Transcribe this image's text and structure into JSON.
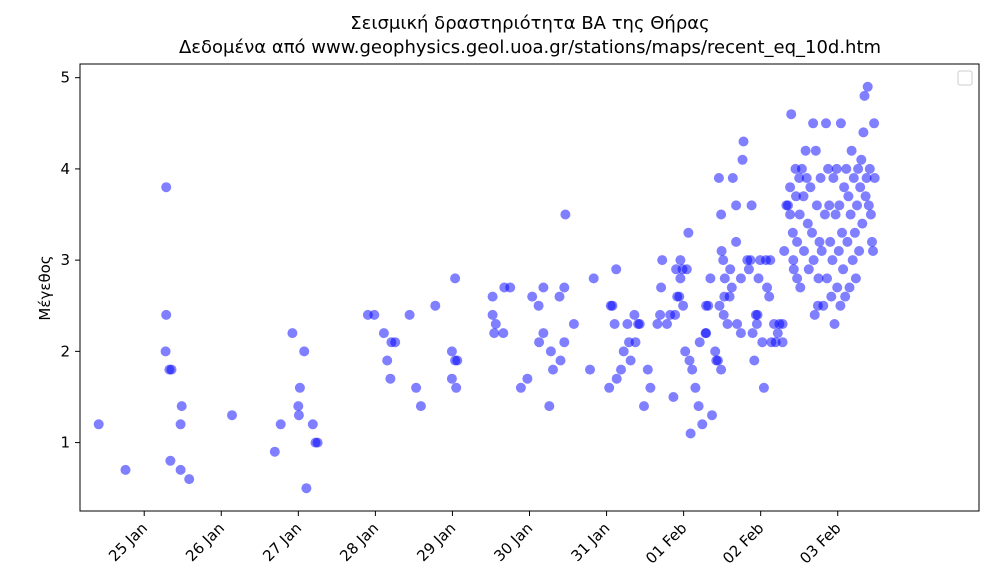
{
  "chart_data": {
    "type": "scatter",
    "title": "Σεισμική δραστηριότητα ΒΑ της Θήρας",
    "subtitle": "Δεδομένα από www.geophysics.geol.uoa.gr/stations/maps/recent_eq_10d.htm",
    "xlabel": "",
    "ylabel": "Μέγεθος",
    "x_unit": "date (days, 2025)",
    "xlim": [
      "2025-01-24T04:00",
      "2025-02-04T20:00"
    ],
    "ylim": [
      0.25,
      5.15
    ],
    "xticks": [
      {
        "label": "25 Jan",
        "date": "2025-01-25"
      },
      {
        "label": "26 Jan",
        "date": "2025-01-26"
      },
      {
        "label": "27 Jan",
        "date": "2025-01-27"
      },
      {
        "label": "28 Jan",
        "date": "2025-01-28"
      },
      {
        "label": "29 Jan",
        "date": "2025-01-29"
      },
      {
        "label": "30 Jan",
        "date": "2025-01-30"
      },
      {
        "label": "31 Jan",
        "date": "2025-01-31"
      },
      {
        "label": "01 Feb",
        "date": "2025-02-01"
      },
      {
        "label": "02 Feb",
        "date": "2025-02-02"
      },
      {
        "label": "03 Feb",
        "date": "2025-02-03"
      }
    ],
    "yticks": [
      1,
      2,
      3,
      4,
      5
    ],
    "grid": false,
    "legend": {
      "placement": "upper right",
      "entries": []
    },
    "marker_color": "#0000ff",
    "marker_alpha": 0.5,
    "points": [
      [
        "2025-01-24T09:50",
        1.2
      ],
      [
        "2025-01-24T18:10",
        0.7
      ],
      [
        "2025-01-25T06:50",
        3.8
      ],
      [
        "2025-01-25T06:50",
        2.4
      ],
      [
        "2025-01-25T06:40",
        2.0
      ],
      [
        "2025-01-25T07:50",
        1.8
      ],
      [
        "2025-01-25T08:30",
        1.8
      ],
      [
        "2025-01-25T08:10",
        0.8
      ],
      [
        "2025-01-25T11:40",
        1.4
      ],
      [
        "2025-01-25T11:20",
        1.2
      ],
      [
        "2025-01-25T11:20",
        0.7
      ],
      [
        "2025-01-25T14:00",
        0.6
      ],
      [
        "2025-01-26T03:20",
        1.3
      ],
      [
        "2025-01-26T16:40",
        0.9
      ],
      [
        "2025-01-26T18:30",
        1.2
      ],
      [
        "2025-01-26T22:10",
        2.2
      ],
      [
        "2025-01-27T00:00",
        1.4
      ],
      [
        "2025-01-27T00:10",
        1.3
      ],
      [
        "2025-01-27T00:30",
        1.6
      ],
      [
        "2025-01-27T01:50",
        2.0
      ],
      [
        "2025-01-27T02:30",
        0.5
      ],
      [
        "2025-01-27T04:30",
        1.2
      ],
      [
        "2025-01-27T05:20",
        1.0
      ],
      [
        "2025-01-27T06:00",
        1.0
      ],
      [
        "2025-01-27T21:40",
        2.4
      ],
      [
        "2025-01-27T23:40",
        2.4
      ],
      [
        "2025-01-28T02:40",
        2.2
      ],
      [
        "2025-01-28T03:40",
        1.9
      ],
      [
        "2025-01-28T05:00",
        2.1
      ],
      [
        "2025-01-28T04:40",
        1.7
      ],
      [
        "2025-01-28T06:10",
        2.1
      ],
      [
        "2025-01-28T10:40",
        2.4
      ],
      [
        "2025-01-28T12:40",
        1.6
      ],
      [
        "2025-01-28T14:10",
        1.4
      ],
      [
        "2025-01-28T18:40",
        2.5
      ],
      [
        "2025-01-28T23:50",
        2.0
      ],
      [
        "2025-01-28T23:50",
        1.7
      ],
      [
        "2025-01-29T00:50",
        1.9
      ],
      [
        "2025-01-29T01:10",
        1.6
      ],
      [
        "2025-01-29T01:30",
        1.9
      ],
      [
        "2025-01-29T00:50",
        2.8
      ],
      [
        "2025-01-29T12:30",
        2.6
      ],
      [
        "2025-01-29T12:30",
        2.4
      ],
      [
        "2025-01-29T13:30",
        2.3
      ],
      [
        "2025-01-29T13:00",
        2.2
      ],
      [
        "2025-01-29T15:50",
        2.2
      ],
      [
        "2025-01-29T16:10",
        2.7
      ],
      [
        "2025-01-29T18:00",
        2.7
      ],
      [
        "2025-01-29T21:20",
        1.6
      ],
      [
        "2025-01-29T23:20",
        1.7
      ],
      [
        "2025-01-30T00:50",
        2.6
      ],
      [
        "2025-01-30T02:50",
        2.5
      ],
      [
        "2025-01-30T03:00",
        2.1
      ],
      [
        "2025-01-30T04:20",
        2.2
      ],
      [
        "2025-01-30T04:20",
        2.7
      ],
      [
        "2025-01-30T06:40",
        2.0
      ],
      [
        "2025-01-30T06:10",
        1.4
      ],
      [
        "2025-01-30T07:20",
        1.8
      ],
      [
        "2025-01-30T09:20",
        2.6
      ],
      [
        "2025-01-30T10:50",
        2.7
      ],
      [
        "2025-01-30T09:40",
        1.9
      ],
      [
        "2025-01-30T10:50",
        2.1
      ],
      [
        "2025-01-30T11:10",
        3.5
      ],
      [
        "2025-01-30T13:50",
        2.3
      ],
      [
        "2025-01-30T18:50",
        1.8
      ],
      [
        "2025-01-30T20:00",
        2.8
      ],
      [
        "2025-01-31T00:50",
        1.6
      ],
      [
        "2025-01-31T01:20",
        2.5
      ],
      [
        "2025-01-31T01:50",
        2.5
      ],
      [
        "2025-01-31T02:30",
        2.3
      ],
      [
        "2025-01-31T03:00",
        2.9
      ],
      [
        "2025-01-31T03:10",
        1.7
      ],
      [
        "2025-01-31T04:30",
        1.8
      ],
      [
        "2025-01-31T05:20",
        2.0
      ],
      [
        "2025-01-31T06:30",
        2.3
      ],
      [
        "2025-01-31T07:00",
        2.1
      ],
      [
        "2025-01-31T07:30",
        1.9
      ],
      [
        "2025-01-31T08:40",
        2.4
      ],
      [
        "2025-01-31T09:00",
        2.1
      ],
      [
        "2025-01-31T09:50",
        2.3
      ],
      [
        "2025-01-31T10:20",
        2.3
      ],
      [
        "2025-01-31T11:40",
        1.4
      ],
      [
        "2025-01-31T12:50",
        1.8
      ],
      [
        "2025-01-31T13:40",
        1.6
      ],
      [
        "2025-01-31T15:50",
        2.3
      ],
      [
        "2025-01-31T16:40",
        2.4
      ],
      [
        "2025-01-31T17:00",
        2.7
      ],
      [
        "2025-01-31T17:20",
        3.0
      ],
      [
        "2025-01-31T18:50",
        2.3
      ],
      [
        "2025-01-31T19:50",
        2.4
      ],
      [
        "2025-01-31T20:50",
        1.5
      ],
      [
        "2025-01-31T21:20",
        2.4
      ],
      [
        "2025-01-31T21:40",
        2.9
      ],
      [
        "2025-01-31T22:00",
        2.6
      ],
      [
        "2025-01-31T22:40",
        2.6
      ],
      [
        "2025-01-31T23:00",
        2.8
      ],
      [
        "2025-01-31T23:00",
        3.0
      ],
      [
        "2025-01-31T23:40",
        2.9
      ],
      [
        "2025-01-31T23:50",
        2.5
      ],
      [
        "2025-02-01T00:30",
        2.0
      ],
      [
        "2025-02-01T01:00",
        2.9
      ],
      [
        "2025-02-01T01:30",
        3.3
      ],
      [
        "2025-02-01T01:50",
        1.9
      ],
      [
        "2025-02-01T02:10",
        1.1
      ],
      [
        "2025-02-01T02:40",
        1.8
      ],
      [
        "2025-02-01T03:40",
        1.6
      ],
      [
        "2025-02-01T04:40",
        1.4
      ],
      [
        "2025-02-01T05:00",
        2.1
      ],
      [
        "2025-02-01T05:50",
        1.2
      ],
      [
        "2025-02-01T06:50",
        2.2
      ],
      [
        "2025-02-01T07:00",
        2.5
      ],
      [
        "2025-02-01T07:00",
        2.2
      ],
      [
        "2025-02-01T07:40",
        2.5
      ],
      [
        "2025-02-01T08:20",
        2.8
      ],
      [
        "2025-02-01T08:50",
        1.3
      ],
      [
        "2025-02-01T09:50",
        2.0
      ],
      [
        "2025-02-01T10:10",
        1.9
      ],
      [
        "2025-02-01T10:40",
        1.9
      ],
      [
        "2025-02-01T11:00",
        3.9
      ],
      [
        "2025-02-01T11:10",
        2.5
      ],
      [
        "2025-02-01T11:40",
        1.8
      ],
      [
        "2025-02-01T11:50",
        3.1
      ],
      [
        "2025-02-01T11:40",
        3.5
      ],
      [
        "2025-02-01T12:20",
        3.0
      ],
      [
        "2025-02-01T12:40",
        2.6
      ],
      [
        "2025-02-01T12:30",
        2.4
      ],
      [
        "2025-02-01T12:50",
        2.8
      ],
      [
        "2025-02-01T13:40",
        2.3
      ],
      [
        "2025-02-01T14:20",
        2.6
      ],
      [
        "2025-02-01T14:30",
        2.9
      ],
      [
        "2025-02-01T15:20",
        3.9
      ],
      [
        "2025-02-01T15:00",
        2.7
      ],
      [
        "2025-02-01T16:20",
        3.6
      ],
      [
        "2025-02-01T16:20",
        3.2
      ],
      [
        "2025-02-01T16:40",
        2.3
      ],
      [
        "2025-02-01T17:50",
        2.8
      ],
      [
        "2025-02-01T17:50",
        2.2
      ],
      [
        "2025-02-01T18:20",
        4.1
      ],
      [
        "2025-02-01T18:40",
        4.3
      ],
      [
        "2025-02-01T19:50",
        3.0
      ],
      [
        "2025-02-01T20:20",
        2.9
      ],
      [
        "2025-02-01T20:50",
        3.0
      ],
      [
        "2025-02-01T21:10",
        3.6
      ],
      [
        "2025-02-01T21:30",
        2.2
      ],
      [
        "2025-02-01T22:00",
        1.9
      ],
      [
        "2025-02-01T22:30",
        2.4
      ],
      [
        "2025-02-01T22:50",
        2.3
      ],
      [
        "2025-02-01T23:00",
        2.4
      ],
      [
        "2025-02-01T23:20",
        2.8
      ],
      [
        "2025-02-01T23:50",
        3.0
      ],
      [
        "2025-02-02T00:30",
        2.1
      ],
      [
        "2025-02-02T01:00",
        1.6
      ],
      [
        "2025-02-02T01:40",
        3.0
      ],
      [
        "2025-02-02T02:00",
        2.7
      ],
      [
        "2025-02-02T02:40",
        2.6
      ],
      [
        "2025-02-02T03:00",
        3.0
      ],
      [
        "2025-02-02T03:20",
        2.1
      ],
      [
        "2025-02-02T04:10",
        2.3
      ],
      [
        "2025-02-02T04:40",
        2.1
      ],
      [
        "2025-02-02T05:20",
        2.2
      ],
      [
        "2025-02-02T05:50",
        2.3
      ],
      [
        "2025-02-02T06:50",
        2.1
      ],
      [
        "2025-02-02T06:50",
        2.3
      ],
      [
        "2025-02-02T07:20",
        3.1
      ],
      [
        "2025-02-02T08:00",
        3.6
      ],
      [
        "2025-02-02T08:30",
        3.6
      ],
      [
        "2025-02-02T09:10",
        3.5
      ],
      [
        "2025-02-02T09:10",
        3.8
      ],
      [
        "2025-02-02T09:30",
        4.6
      ],
      [
        "2025-02-02T10:00",
        3.3
      ],
      [
        "2025-02-02T10:10",
        3.0
      ],
      [
        "2025-02-02T10:20",
        2.9
      ],
      [
        "2025-02-02T10:50",
        4.0
      ],
      [
        "2025-02-02T11:00",
        3.7
      ],
      [
        "2025-02-02T11:20",
        3.2
      ],
      [
        "2025-02-02T11:20",
        2.8
      ],
      [
        "2025-02-02T12:00",
        3.9
      ],
      [
        "2025-02-02T12:10",
        3.5
      ],
      [
        "2025-02-02T12:20",
        2.7
      ],
      [
        "2025-02-02T12:50",
        4.0
      ],
      [
        "2025-02-02T13:20",
        3.7
      ],
      [
        "2025-02-02T13:30",
        3.1
      ],
      [
        "2025-02-02T14:00",
        4.2
      ],
      [
        "2025-02-02T14:20",
        3.9
      ],
      [
        "2025-02-02T14:40",
        3.4
      ],
      [
        "2025-02-02T15:00",
        2.9
      ],
      [
        "2025-02-02T15:30",
        3.8
      ],
      [
        "2025-02-02T16:00",
        3.3
      ],
      [
        "2025-02-02T16:20",
        4.5
      ],
      [
        "2025-02-02T16:30",
        3.0
      ],
      [
        "2025-02-02T16:50",
        2.4
      ],
      [
        "2025-02-02T17:10",
        4.2
      ],
      [
        "2025-02-02T17:30",
        3.6
      ],
      [
        "2025-02-02T17:50",
        2.5
      ],
      [
        "2025-02-02T18:00",
        2.8
      ],
      [
        "2025-02-02T18:20",
        3.2
      ],
      [
        "2025-02-02T18:40",
        3.9
      ],
      [
        "2025-02-02T19:00",
        3.1
      ],
      [
        "2025-02-02T19:30",
        2.5
      ],
      [
        "2025-02-02T20:00",
        3.5
      ],
      [
        "2025-02-02T20:20",
        4.5
      ],
      [
        "2025-02-02T20:40",
        2.8
      ],
      [
        "2025-02-02T21:00",
        4.0
      ],
      [
        "2025-02-02T21:20",
        3.6
      ],
      [
        "2025-02-02T21:40",
        3.2
      ],
      [
        "2025-02-02T22:00",
        2.6
      ],
      [
        "2025-02-02T22:20",
        3.0
      ],
      [
        "2025-02-02T22:40",
        3.9
      ],
      [
        "2025-02-02T23:00",
        2.3
      ],
      [
        "2025-02-02T23:20",
        3.5
      ],
      [
        "2025-02-02T23:40",
        4.0
      ],
      [
        "2025-02-02T23:50",
        2.7
      ],
      [
        "2025-02-03T00:20",
        3.1
      ],
      [
        "2025-02-03T00:30",
        3.6
      ],
      [
        "2025-02-03T00:50",
        2.5
      ],
      [
        "2025-02-03T01:00",
        4.5
      ],
      [
        "2025-02-03T01:20",
        3.3
      ],
      [
        "2025-02-03T01:40",
        2.9
      ],
      [
        "2025-02-03T02:00",
        3.8
      ],
      [
        "2025-02-03T02:20",
        2.6
      ],
      [
        "2025-02-03T02:40",
        4.0
      ],
      [
        "2025-02-03T03:00",
        3.2
      ],
      [
        "2025-02-03T03:20",
        3.7
      ],
      [
        "2025-02-03T03:40",
        2.7
      ],
      [
        "2025-02-03T04:00",
        3.5
      ],
      [
        "2025-02-03T04:20",
        4.2
      ],
      [
        "2025-02-03T04:40",
        3.0
      ],
      [
        "2025-02-03T05:00",
        3.9
      ],
      [
        "2025-02-03T05:20",
        3.3
      ],
      [
        "2025-02-03T05:40",
        2.8
      ],
      [
        "2025-02-03T06:00",
        3.6
      ],
      [
        "2025-02-03T06:20",
        4.0
      ],
      [
        "2025-02-03T06:40",
        3.1
      ],
      [
        "2025-02-03T07:00",
        3.8
      ],
      [
        "2025-02-03T07:20",
        4.1
      ],
      [
        "2025-02-03T07:40",
        3.4
      ],
      [
        "2025-02-03T08:00",
        4.4
      ],
      [
        "2025-02-03T08:20",
        4.8
      ],
      [
        "2025-02-03T08:40",
        3.7
      ],
      [
        "2025-02-03T09:00",
        3.9
      ],
      [
        "2025-02-03T09:20",
        4.9
      ],
      [
        "2025-02-03T09:40",
        3.6
      ],
      [
        "2025-02-03T10:00",
        4.0
      ],
      [
        "2025-02-03T10:20",
        3.5
      ],
      [
        "2025-02-03T10:40",
        3.2
      ],
      [
        "2025-02-03T11:00",
        3.1
      ],
      [
        "2025-02-03T11:20",
        4.5
      ],
      [
        "2025-02-03T11:30",
        3.9
      ]
    ]
  }
}
